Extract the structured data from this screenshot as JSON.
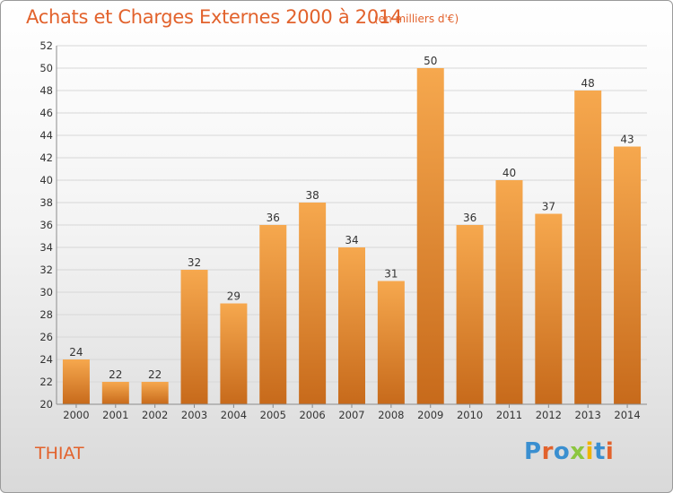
{
  "header": {
    "title": "Achats et Charges Externes 2000 à 2014",
    "subtitle": "(en milliers d'€)"
  },
  "footer": {
    "commune": "THIAT",
    "brand": "Proxiti",
    "brand_colors": [
      "#3a8fd0",
      "#e2622c",
      "#3a8fd0",
      "#8cc63f",
      "#f0b400",
      "#3a8fd0",
      "#e2622c"
    ]
  },
  "colors": {
    "bar_light": "#f6a84e",
    "bar_dark": "#c76a1b",
    "accent": "#e2622c",
    "grid": "#d7d7d7"
  },
  "chart_data": {
    "type": "bar",
    "categories": [
      "2000",
      "2001",
      "2002",
      "2003",
      "2004",
      "2005",
      "2006",
      "2007",
      "2008",
      "2009",
      "2010",
      "2011",
      "2012",
      "2013",
      "2014"
    ],
    "values": [
      24,
      22,
      22,
      32,
      29,
      36,
      38,
      34,
      31,
      50,
      36,
      40,
      37,
      48,
      43
    ],
    "ylim": [
      20,
      52
    ],
    "ytick_step": 2,
    "grid": true,
    "xlabel": "",
    "ylabel": ""
  }
}
